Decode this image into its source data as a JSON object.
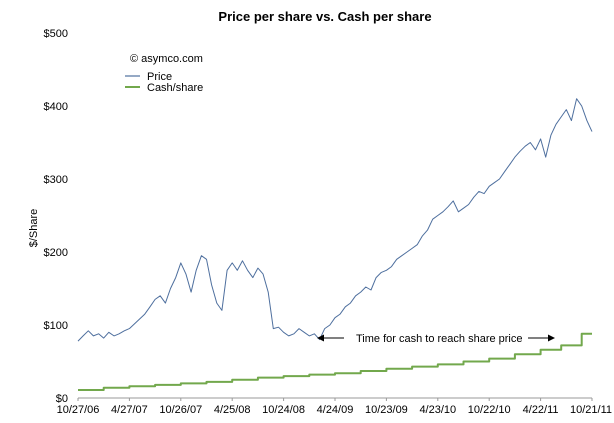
{
  "chart_data": {
    "type": "line",
    "title": "Price per share vs. Cash per share",
    "ylabel": "$/Share",
    "xlabel": "",
    "ylim": [
      0,
      500
    ],
    "y_ticks": [
      0,
      100,
      200,
      300,
      400,
      500
    ],
    "y_tick_labels": [
      "$0",
      "$100",
      "$200",
      "$300",
      "$400",
      "$500"
    ],
    "x_tick_labels": [
      "10/27/06",
      "4/27/07",
      "10/26/07",
      "4/25/08",
      "10/24/08",
      "4/24/09",
      "10/23/09",
      "4/23/10",
      "10/22/10",
      "4/22/11",
      "10/21/11"
    ],
    "grid": false,
    "legend": {
      "placement": "top-left",
      "copyright": "© asymco.com"
    },
    "annotation": "Time for cash to reach share price",
    "series": [
      {
        "name": "Price",
        "color": "#4e6f9e",
        "x": [
          0,
          0.1,
          0.2,
          0.3,
          0.4,
          0.5,
          0.6,
          0.7,
          0.8,
          0.9,
          1.0,
          1.15,
          1.3,
          1.4,
          1.5,
          1.6,
          1.7,
          1.8,
          1.9,
          2.0,
          2.1,
          2.2,
          2.3,
          2.4,
          2.5,
          2.6,
          2.7,
          2.8,
          2.9,
          3.0,
          3.05,
          3.1,
          3.2,
          3.3,
          3.4,
          3.5,
          3.6,
          3.7,
          3.8,
          3.9,
          4.0,
          4.1,
          4.2,
          4.3,
          4.4,
          4.5,
          4.6,
          4.7,
          4.8,
          4.9,
          5.0,
          5.1,
          5.2,
          5.3,
          5.4,
          5.5,
          5.6,
          5.7,
          5.8,
          5.9,
          6.0,
          6.1,
          6.2,
          6.3,
          6.4,
          6.5,
          6.6,
          6.7,
          6.8,
          6.9,
          7.0,
          7.1,
          7.2,
          7.3,
          7.4,
          7.5,
          7.6,
          7.7,
          7.8,
          7.9,
          8.0,
          8.1,
          8.2,
          8.3,
          8.4,
          8.5,
          8.6,
          8.7,
          8.8,
          8.9,
          9.0,
          9.1,
          9.2,
          9.3,
          9.4,
          9.5,
          9.6,
          9.7,
          9.8,
          9.9,
          10.0
        ],
        "values": [
          78,
          85,
          92,
          85,
          88,
          82,
          90,
          85,
          88,
          92,
          95,
          105,
          115,
          125,
          135,
          140,
          130,
          150,
          165,
          185,
          170,
          145,
          175,
          195,
          190,
          155,
          130,
          120,
          175,
          185,
          180,
          175,
          188,
          175,
          165,
          178,
          170,
          145,
          95,
          97,
          90,
          85,
          88,
          95,
          90,
          85,
          88,
          80,
          95,
          100,
          110,
          115,
          125,
          130,
          140,
          145,
          152,
          148,
          165,
          172,
          175,
          180,
          190,
          195,
          200,
          205,
          210,
          222,
          230,
          245,
          250,
          255,
          262,
          270,
          255,
          260,
          265,
          275,
          283,
          280,
          290,
          295,
          300,
          310,
          320,
          330,
          338,
          345,
          350,
          340,
          355,
          330,
          360,
          375,
          385,
          395,
          380,
          410,
          400,
          380,
          365
        ]
      },
      {
        "name": "Cash/share",
        "color": "#72a84c",
        "x": [
          0,
          0.5,
          0.5,
          1.0,
          1.0,
          1.5,
          1.5,
          2.0,
          2.0,
          2.5,
          2.5,
          3.0,
          3.0,
          3.5,
          3.5,
          4.0,
          4.0,
          4.5,
          4.5,
          5.0,
          5.0,
          5.5,
          5.5,
          6.0,
          6.0,
          6.5,
          6.5,
          7.0,
          7.0,
          7.5,
          7.5,
          8.0,
          8.0,
          8.5,
          8.5,
          9.0,
          9.0,
          9.4,
          9.4,
          9.8,
          9.8,
          10.0
        ],
        "values": [
          11,
          11,
          14,
          14,
          16,
          16,
          18,
          18,
          20,
          20,
          22,
          22,
          25,
          25,
          28,
          28,
          30,
          30,
          32,
          32,
          34,
          34,
          37,
          37,
          40,
          40,
          43,
          43,
          46,
          46,
          50,
          50,
          54,
          54,
          60,
          60,
          66,
          66,
          72,
          72,
          88,
          88
        ]
      }
    ]
  }
}
